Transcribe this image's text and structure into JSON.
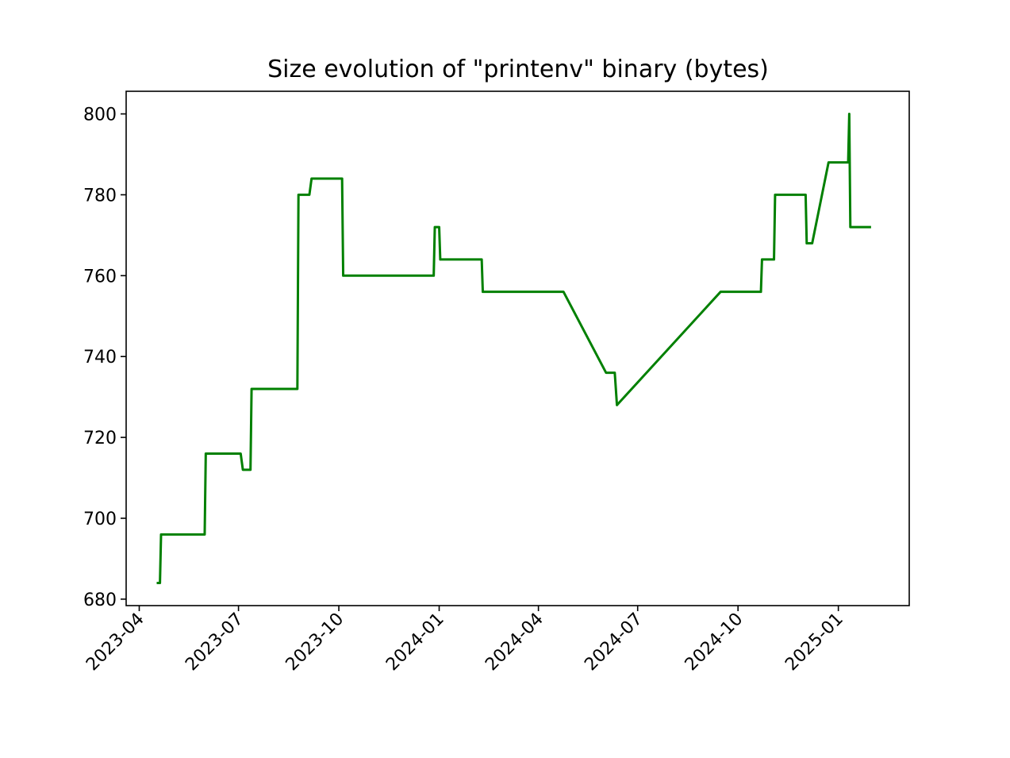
{
  "chart_data": {
    "type": "line",
    "title": "Size evolution of \"printenv\" binary (bytes)",
    "xlabel": "",
    "ylabel": "",
    "xlim": [
      "2023-03-20",
      "2025-03-07"
    ],
    "ylim": [
      678.4,
      805.6
    ],
    "grid": false,
    "line_color": "#008000",
    "x_ticks": [
      "2023-04",
      "2023-07",
      "2023-10",
      "2024-01",
      "2024-04",
      "2024-07",
      "2024-10",
      "2025-01"
    ],
    "x_tick_dates": [
      "2023-04-01",
      "2023-07-01",
      "2023-10-01",
      "2024-01-01",
      "2024-04-01",
      "2024-07-01",
      "2024-10-01",
      "2025-01-01"
    ],
    "y_ticks": [
      680,
      700,
      720,
      740,
      760,
      780,
      800
    ],
    "series": [
      {
        "points": [
          [
            "2023-04-17",
            684
          ],
          [
            "2023-04-20",
            684
          ],
          [
            "2023-04-21",
            696
          ],
          [
            "2023-05-31",
            696
          ],
          [
            "2023-06-01",
            716
          ],
          [
            "2023-07-03",
            716
          ],
          [
            "2023-07-05",
            712
          ],
          [
            "2023-07-12",
            712
          ],
          [
            "2023-07-13",
            732
          ],
          [
            "2023-08-24",
            732
          ],
          [
            "2023-08-25",
            780
          ],
          [
            "2023-09-04",
            780
          ],
          [
            "2023-09-06",
            784
          ],
          [
            "2023-10-04",
            784
          ],
          [
            "2023-10-05",
            760
          ],
          [
            "2023-12-27",
            760
          ],
          [
            "2023-12-28",
            772
          ],
          [
            "2024-01-01",
            772
          ],
          [
            "2024-01-02",
            764
          ],
          [
            "2024-02-09",
            764
          ],
          [
            "2024-02-10",
            756
          ],
          [
            "2024-04-24",
            756
          ],
          [
            "2024-06-02",
            736
          ],
          [
            "2024-06-10",
            736
          ],
          [
            "2024-06-12",
            728
          ],
          [
            "2024-09-15",
            756
          ],
          [
            "2024-10-22",
            756
          ],
          [
            "2024-10-23",
            764
          ],
          [
            "2024-11-03",
            764
          ],
          [
            "2024-11-04",
            780
          ],
          [
            "2024-12-02",
            780
          ],
          [
            "2024-12-03",
            768
          ],
          [
            "2024-12-08",
            768
          ],
          [
            "2024-12-23",
            788
          ],
          [
            "2025-01-10",
            788
          ],
          [
            "2025-01-11",
            800
          ],
          [
            "2025-01-12",
            772
          ],
          [
            "2025-01-31",
            772
          ]
        ]
      }
    ]
  }
}
